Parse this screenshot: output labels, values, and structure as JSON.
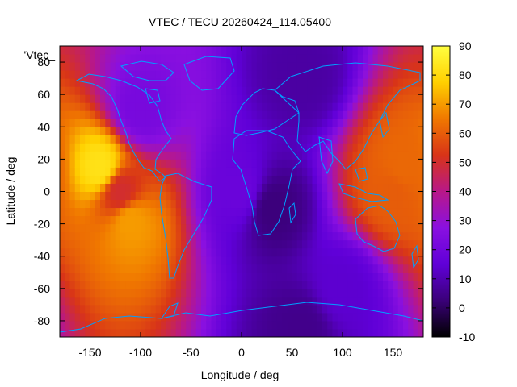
{
  "chart_data": {
    "type": "heatmap",
    "title": "VTEC / TECU 20260424_114.05400",
    "xlabel": "Longitude / deg",
    "ylabel": "Latitude / deg",
    "xlim": [
      -180,
      180
    ],
    "ylim": [
      -90,
      90
    ],
    "xticks": [
      "-150",
      "-100",
      "-50",
      "0",
      "50",
      "100",
      "150"
    ],
    "xtick_values": [
      -150,
      -100,
      -50,
      0,
      50,
      100,
      150
    ],
    "yticks": [
      "-80",
      "-60",
      "-40",
      "-20",
      "0",
      "20",
      "40",
      "60",
      "80"
    ],
    "ytick_values": [
      -80,
      -60,
      -40,
      -20,
      0,
      20,
      40,
      60,
      80
    ],
    "legend_entry": "'Vtec_",
    "colorbar": {
      "range": [
        -10,
        90
      ],
      "ticks": [
        "90",
        "80",
        "70",
        "60",
        "50",
        "40",
        "30",
        "20",
        "10",
        "0",
        "-10"
      ],
      "tick_values": [
        90,
        80,
        70,
        60,
        50,
        40,
        30,
        20,
        10,
        0,
        -10
      ],
      "palette": [
        "#000000",
        "#3a0078",
        "#6000d8",
        "#8a10e0",
        "#b81888",
        "#d83418",
        "#f07800",
        "#ffd000",
        "#ffff40"
      ]
    },
    "grid": false,
    "coastline_color": "#00a0ff",
    "field_description_points": [
      {
        "lon": -140,
        "lat": 15,
        "vtec": 82
      },
      {
        "lon": -120,
        "lat": 0,
        "vtec": 50
      },
      {
        "lon": -110,
        "lat": -18,
        "vtec": 70
      },
      {
        "lon": 160,
        "lat": 15,
        "vtec": 62
      },
      {
        "lon": 150,
        "lat": 0,
        "vtec": 60
      },
      {
        "lon": 30,
        "lat": -10,
        "vtec": 3
      },
      {
        "lon": 60,
        "lat": 70,
        "vtec": 8
      },
      {
        "lon": 0,
        "lat": 0,
        "vtec": 18
      },
      {
        "lon": -100,
        "lat": 50,
        "vtec": 22
      },
      {
        "lon": 100,
        "lat": -60,
        "vtec": 14
      },
      {
        "lon": 60,
        "lat": -85,
        "vtec": 5
      }
    ]
  }
}
